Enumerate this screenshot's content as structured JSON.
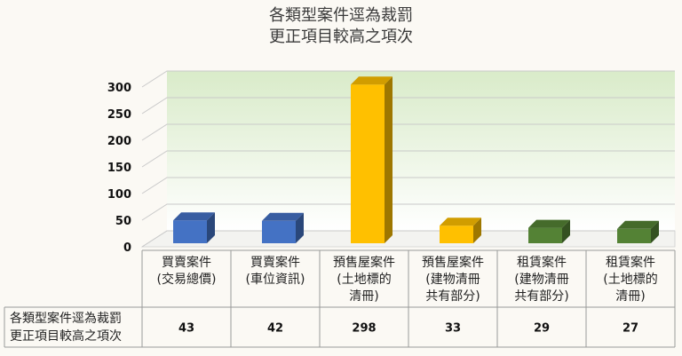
{
  "title_line1": "各類型案件逕為裁罰",
  "title_line2": "更正項目較高之項次",
  "chart_data": {
    "type": "bar",
    "style": "3d-column",
    "title": "各類型案件逕為裁罰 更正項目較高之項次",
    "categories": [
      [
        "買賣案件",
        "(交易總價)"
      ],
      [
        "買賣案件",
        "(車位資訊)"
      ],
      [
        "預售屋案件",
        "(土地標的",
        "清冊)"
      ],
      [
        "預售屋案件",
        "(建物清冊",
        "共有部分)"
      ],
      [
        "租賃案件",
        "(建物清冊",
        "共有部分)"
      ],
      [
        "租賃案件",
        "(土地標的",
        "清冊)"
      ]
    ],
    "series": [
      {
        "name": "各類型案件逕為裁罰更正項目較高之項次",
        "name_lines": [
          "各類型案件逕為裁罰",
          "更正項目較高之項次"
        ],
        "values": [
          43,
          42,
          298,
          33,
          29,
          27
        ]
      }
    ],
    "bar_colors": [
      "#4472c4",
      "#4472c4",
      "#ffc000",
      "#ffc000",
      "#548235",
      "#548235"
    ],
    "ylim": [
      0,
      300
    ],
    "yticks": [
      0,
      50,
      100,
      150,
      200,
      250,
      300
    ],
    "grid": true,
    "data_table": true,
    "background_gradient": [
      "#ffffff",
      "#e2efda"
    ]
  }
}
